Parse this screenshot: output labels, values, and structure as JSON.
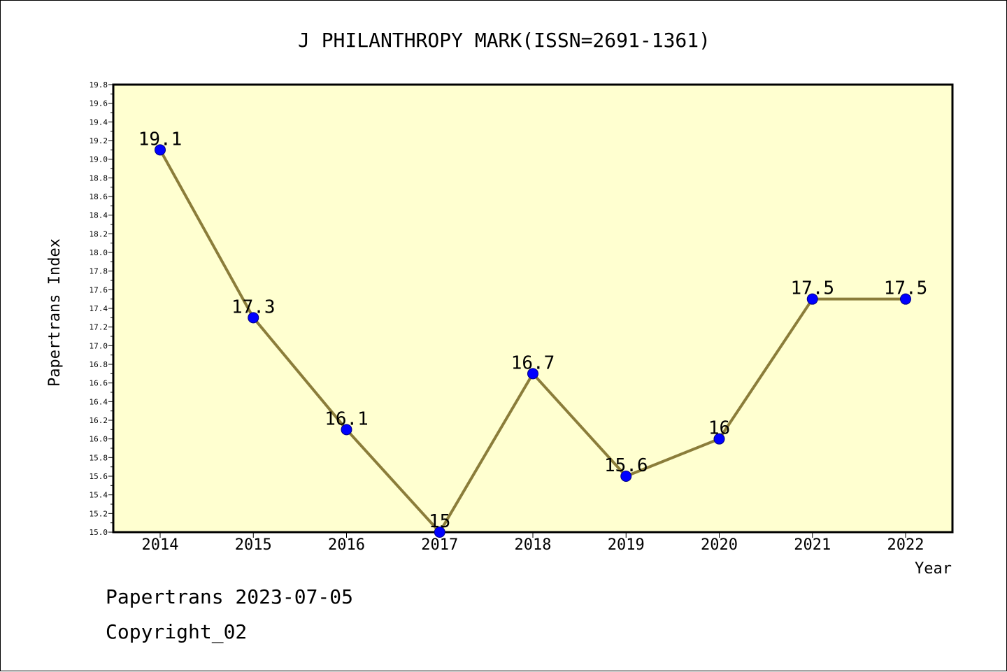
{
  "chart_data": {
    "type": "line",
    "title": "J PHILANTHROPY MARK(ISSN=2691-1361)",
    "xlabel": "Year",
    "ylabel": "Papertrans Index",
    "categories": [
      "2014",
      "2015",
      "2016",
      "2017",
      "2018",
      "2019",
      "2020",
      "2021",
      "2022"
    ],
    "values": [
      19.1,
      17.3,
      16.1,
      15.0,
      16.7,
      15.6,
      16.0,
      17.5,
      17.5
    ],
    "data_labels": [
      "19.1",
      "17.3",
      "16.1",
      "15",
      "16.7",
      "15.6",
      "16",
      "17.5",
      "17.5"
    ],
    "ylim": [
      15.0,
      19.8
    ],
    "yticks": [
      "15.0",
      "15.2",
      "15.4",
      "15.6",
      "15.8",
      "16.0",
      "16.2",
      "16.4",
      "16.6",
      "16.8",
      "17.0",
      "17.2",
      "17.4",
      "17.6",
      "17.8",
      "18.0",
      "18.2",
      "18.4",
      "18.6",
      "18.8",
      "19.0",
      "19.2",
      "19.4",
      "19.6",
      "19.8"
    ],
    "grid": false,
    "colors": {
      "plot_background": "#ffffd0",
      "line": "#8b7d3a",
      "marker": "#0000ff",
      "marker_edge": "#000080"
    }
  },
  "footer": {
    "source": "Papertrans 2023-07-05",
    "copyright": "Copyright_02"
  }
}
